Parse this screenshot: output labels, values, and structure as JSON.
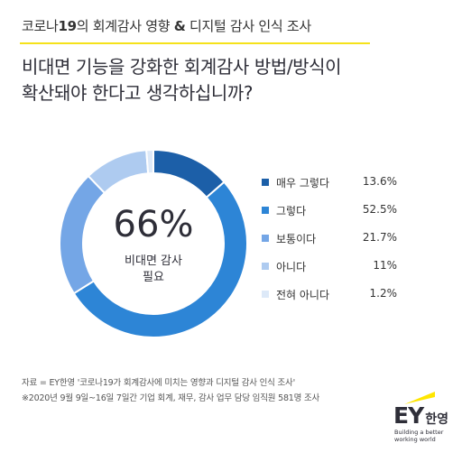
{
  "header": {
    "topic_prefix": "코로나",
    "topic_num": "19",
    "topic_mid": "의 회계감사 영향",
    "topic_amp": "&",
    "topic_suffix": "디지털 감사 인식 조사",
    "question_line1": "비대면 기능을 강화한 회계감사 방법/방식이",
    "question_line2": "확산돼야 한다고 생각하십니까?"
  },
  "chart_data": {
    "type": "pie",
    "variant": "donut",
    "categories": [
      "매우 그렇다",
      "그렇다",
      "보통이다",
      "아니다",
      "전혀 아니다"
    ],
    "values": [
      13.6,
      52.5,
      21.7,
      11,
      1.2
    ],
    "value_labels": [
      "13.6%",
      "52.5%",
      "21.7%",
      "11%",
      "1.2%"
    ],
    "colors": [
      "#1c5fa8",
      "#2d85d6",
      "#74a6e6",
      "#aecbf0",
      "#dde9f8"
    ],
    "center_value": "66%",
    "center_label_line1": "비대면 감사",
    "center_label_line2": "필요",
    "legend_position": "right"
  },
  "footnote": {
    "line1": "자료 = EY한영 '코로나19가 회계감사에 미치는 영향과 디지털 감사 인식 조사'",
    "line2": "※2020년 9월 9일~16일 7일간 기업 회계, 재무, 감사 업무 담당 임직원 581명 조사"
  },
  "logo": {
    "mark": "EY",
    "suffix": "한영",
    "tagline1": "Building a better",
    "tagline2": "working world",
    "beam_color": "#ffe600"
  }
}
